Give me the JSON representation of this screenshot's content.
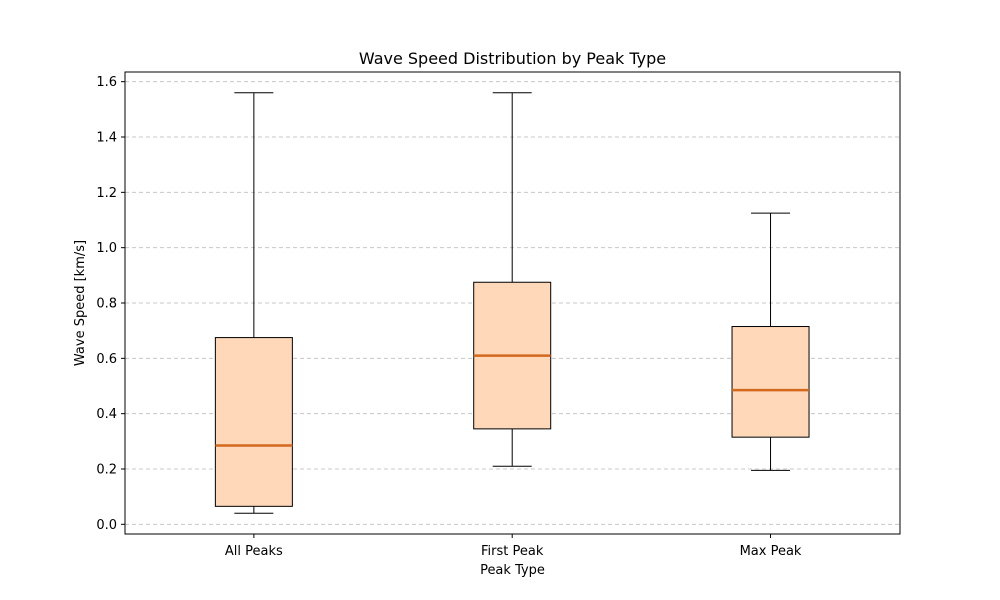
{
  "chart_data": {
    "type": "box",
    "title": "Wave Speed Distribution by Peak Type",
    "xlabel": "Peak Type",
    "ylabel": "Wave Speed [km/s]",
    "categories": [
      "All Peaks",
      "First Peak",
      "Max Peak"
    ],
    "boxes": [
      {
        "category": "All Peaks",
        "whisker_low": 0.04,
        "q1": 0.065,
        "median": 0.285,
        "q3": 0.675,
        "whisker_high": 1.56
      },
      {
        "category": "First Peak",
        "whisker_low": 0.21,
        "q1": 0.345,
        "median": 0.61,
        "q3": 0.875,
        "whisker_high": 1.56
      },
      {
        "category": "Max Peak",
        "whisker_low": 0.195,
        "q1": 0.315,
        "median": 0.485,
        "q3": 0.715,
        "whisker_high": 1.125
      }
    ],
    "ylim": [
      -0.035,
      1.635
    ],
    "yticks": [
      0.0,
      0.2,
      0.4,
      0.6,
      0.8,
      1.0,
      1.2,
      1.4,
      1.6
    ],
    "ytick_labels": [
      "0.0",
      "0.2",
      "0.4",
      "0.6",
      "0.8",
      "1.0",
      "1.2",
      "1.4",
      "1.6"
    ],
    "grid": {
      "axis": "y",
      "style": "dashed",
      "enabled": true
    },
    "colors": {
      "box_fill": "#fed8b8",
      "box_edge": "#000000",
      "median": "#d2691e",
      "grid": "#c8c8c8"
    }
  }
}
